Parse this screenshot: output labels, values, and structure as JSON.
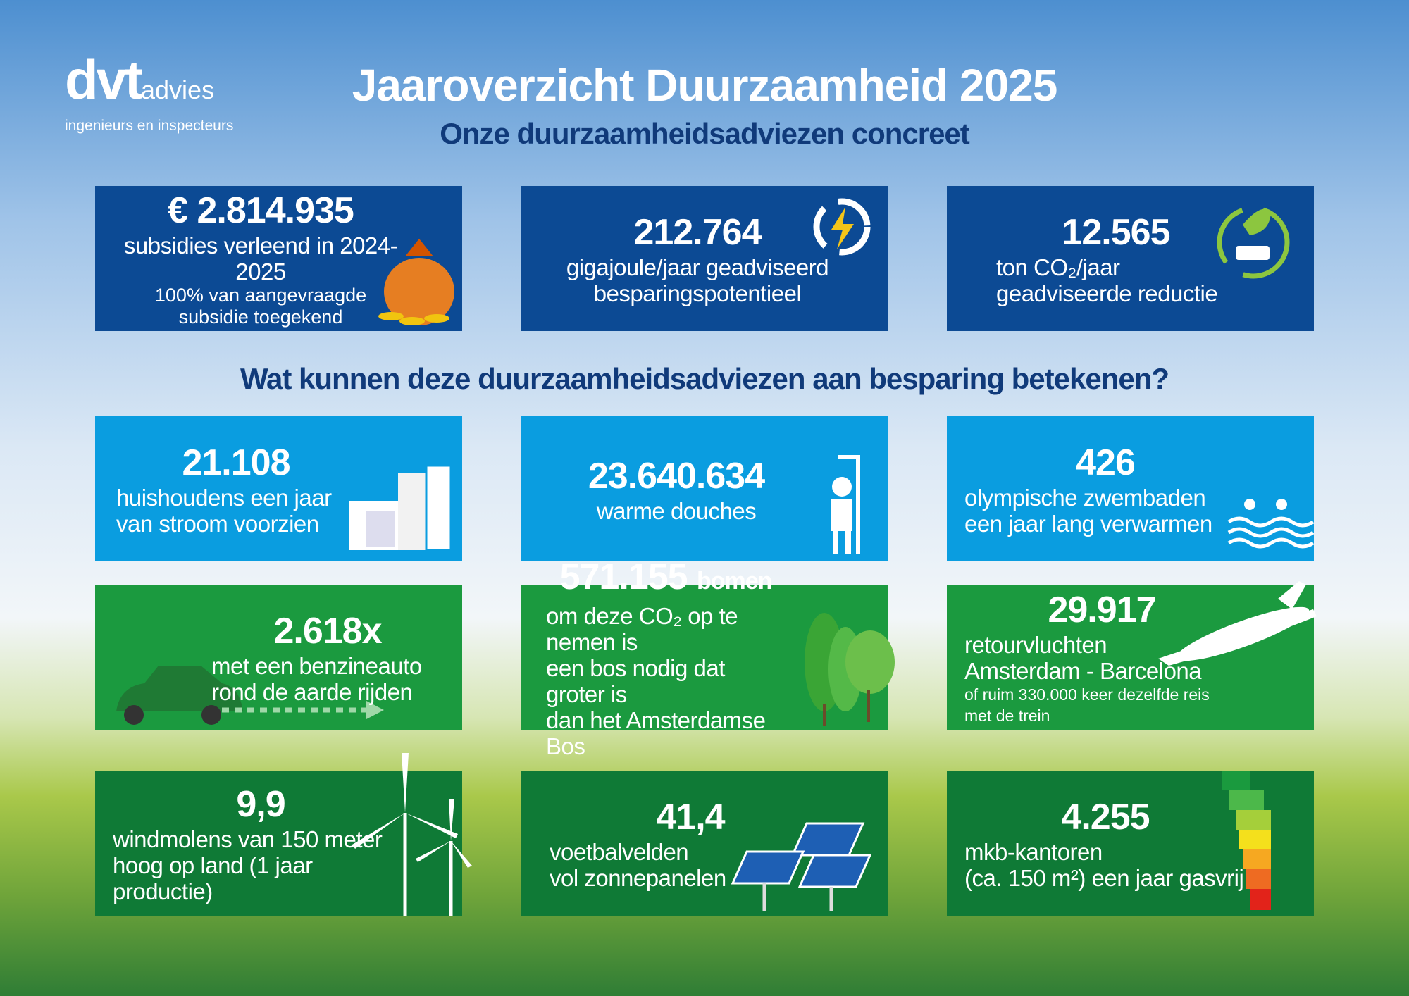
{
  "header": {
    "logo": "dvt",
    "logo_suffix": "advies",
    "tagline": "ingenieurs en inspecteurs",
    "title": "Jaaroverzicht Duurzaamheid 2025",
    "subtitle": "Onze duurzaamheidsadviezen concreet"
  },
  "highlights": [
    {
      "value": "€ 2.814.935",
      "lines": [
        "subsidies verleend in 2024-2025"
      ],
      "note_lines": [
        "100% van aangevraagde",
        "subsidie toegekend"
      ]
    },
    {
      "value": "212.764",
      "lines": [
        "gigajoule/jaar geadviseerd",
        "besparingspotentieel"
      ]
    },
    {
      "value": "12.565",
      "lines": [
        "ton CO₂/jaar",
        "geadviseerde reductie"
      ]
    }
  ],
  "question": "Wat kunnen deze duurzaamheidsadviezen aan besparing betekenen?",
  "comparisons": [
    {
      "value": "21.108",
      "lines": [
        "huishoudens een jaar",
        "van stroom voorzien"
      ]
    },
    {
      "value": "23.640.634",
      "lines": [
        "warme douches"
      ]
    },
    {
      "value": "426",
      "lines": [
        "olympische zwembaden",
        "een jaar lang verwarmen"
      ]
    },
    {
      "value": "2.618x",
      "lines": [
        "met een benzineauto",
        "rond de aarde rijden"
      ]
    },
    {
      "value": "571.155",
      "unit": "bomen",
      "lines": [
        "om deze CO₂ op te nemen is",
        "een bos nodig dat groter is",
        "dan het Amsterdamse Bos"
      ]
    },
    {
      "value": "29.917",
      "lines": [
        "retourvluchten",
        "Amsterdam - Barcelona"
      ],
      "small_lines": [
        "of ruim 330.000 keer dezelfde reis met de trein"
      ]
    },
    {
      "value": "9,9",
      "lines": [
        "windmolens van 150 meter",
        "hoog op land (1 jaar productie)"
      ]
    },
    {
      "value": "41,4",
      "lines": [
        "voetbalvelden",
        "vol zonnepanelen"
      ]
    },
    {
      "value": "4.255",
      "lines": [
        "mkb-kantoren",
        "(ca. 150 m²) een jaar gasvrij"
      ]
    }
  ]
}
